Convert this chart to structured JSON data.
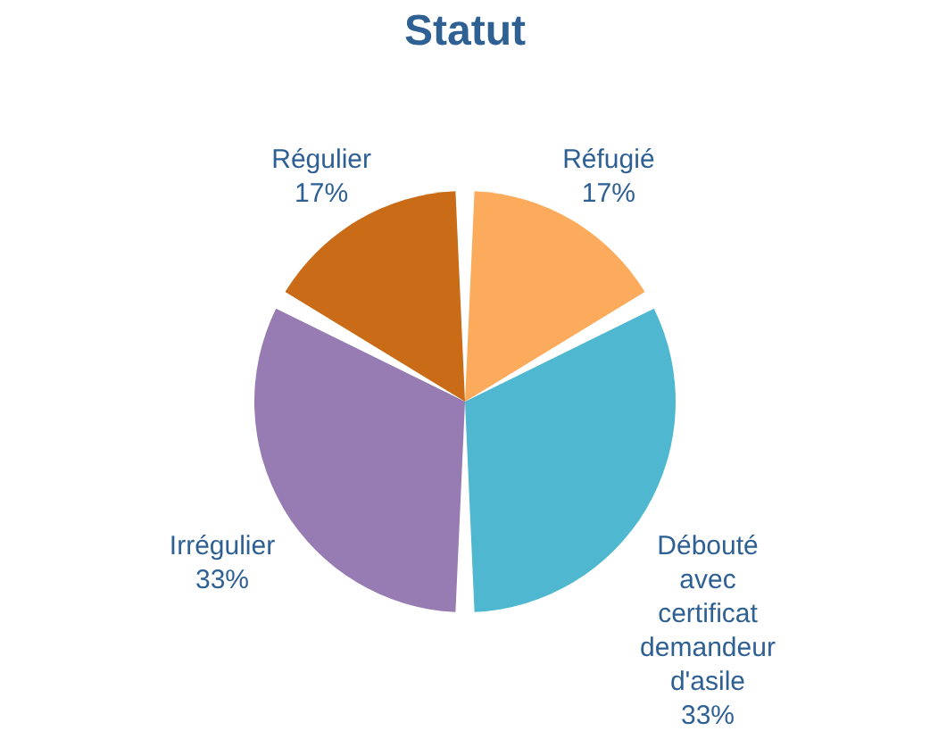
{
  "chart_data": {
    "type": "pie",
    "title": "Statut",
    "categories": [
      "Réfugié",
      "Débouté avec certificat demandeur d'asile",
      "Irrégulier",
      "Régulier"
    ],
    "values": [
      17,
      33,
      33,
      17
    ],
    "colors": [
      "#fcaa5c",
      "#4fb8d0",
      "#977bb3",
      "#c96b17"
    ],
    "value_labels": [
      "17%",
      "33%",
      "33%",
      "17%"
    ]
  }
}
